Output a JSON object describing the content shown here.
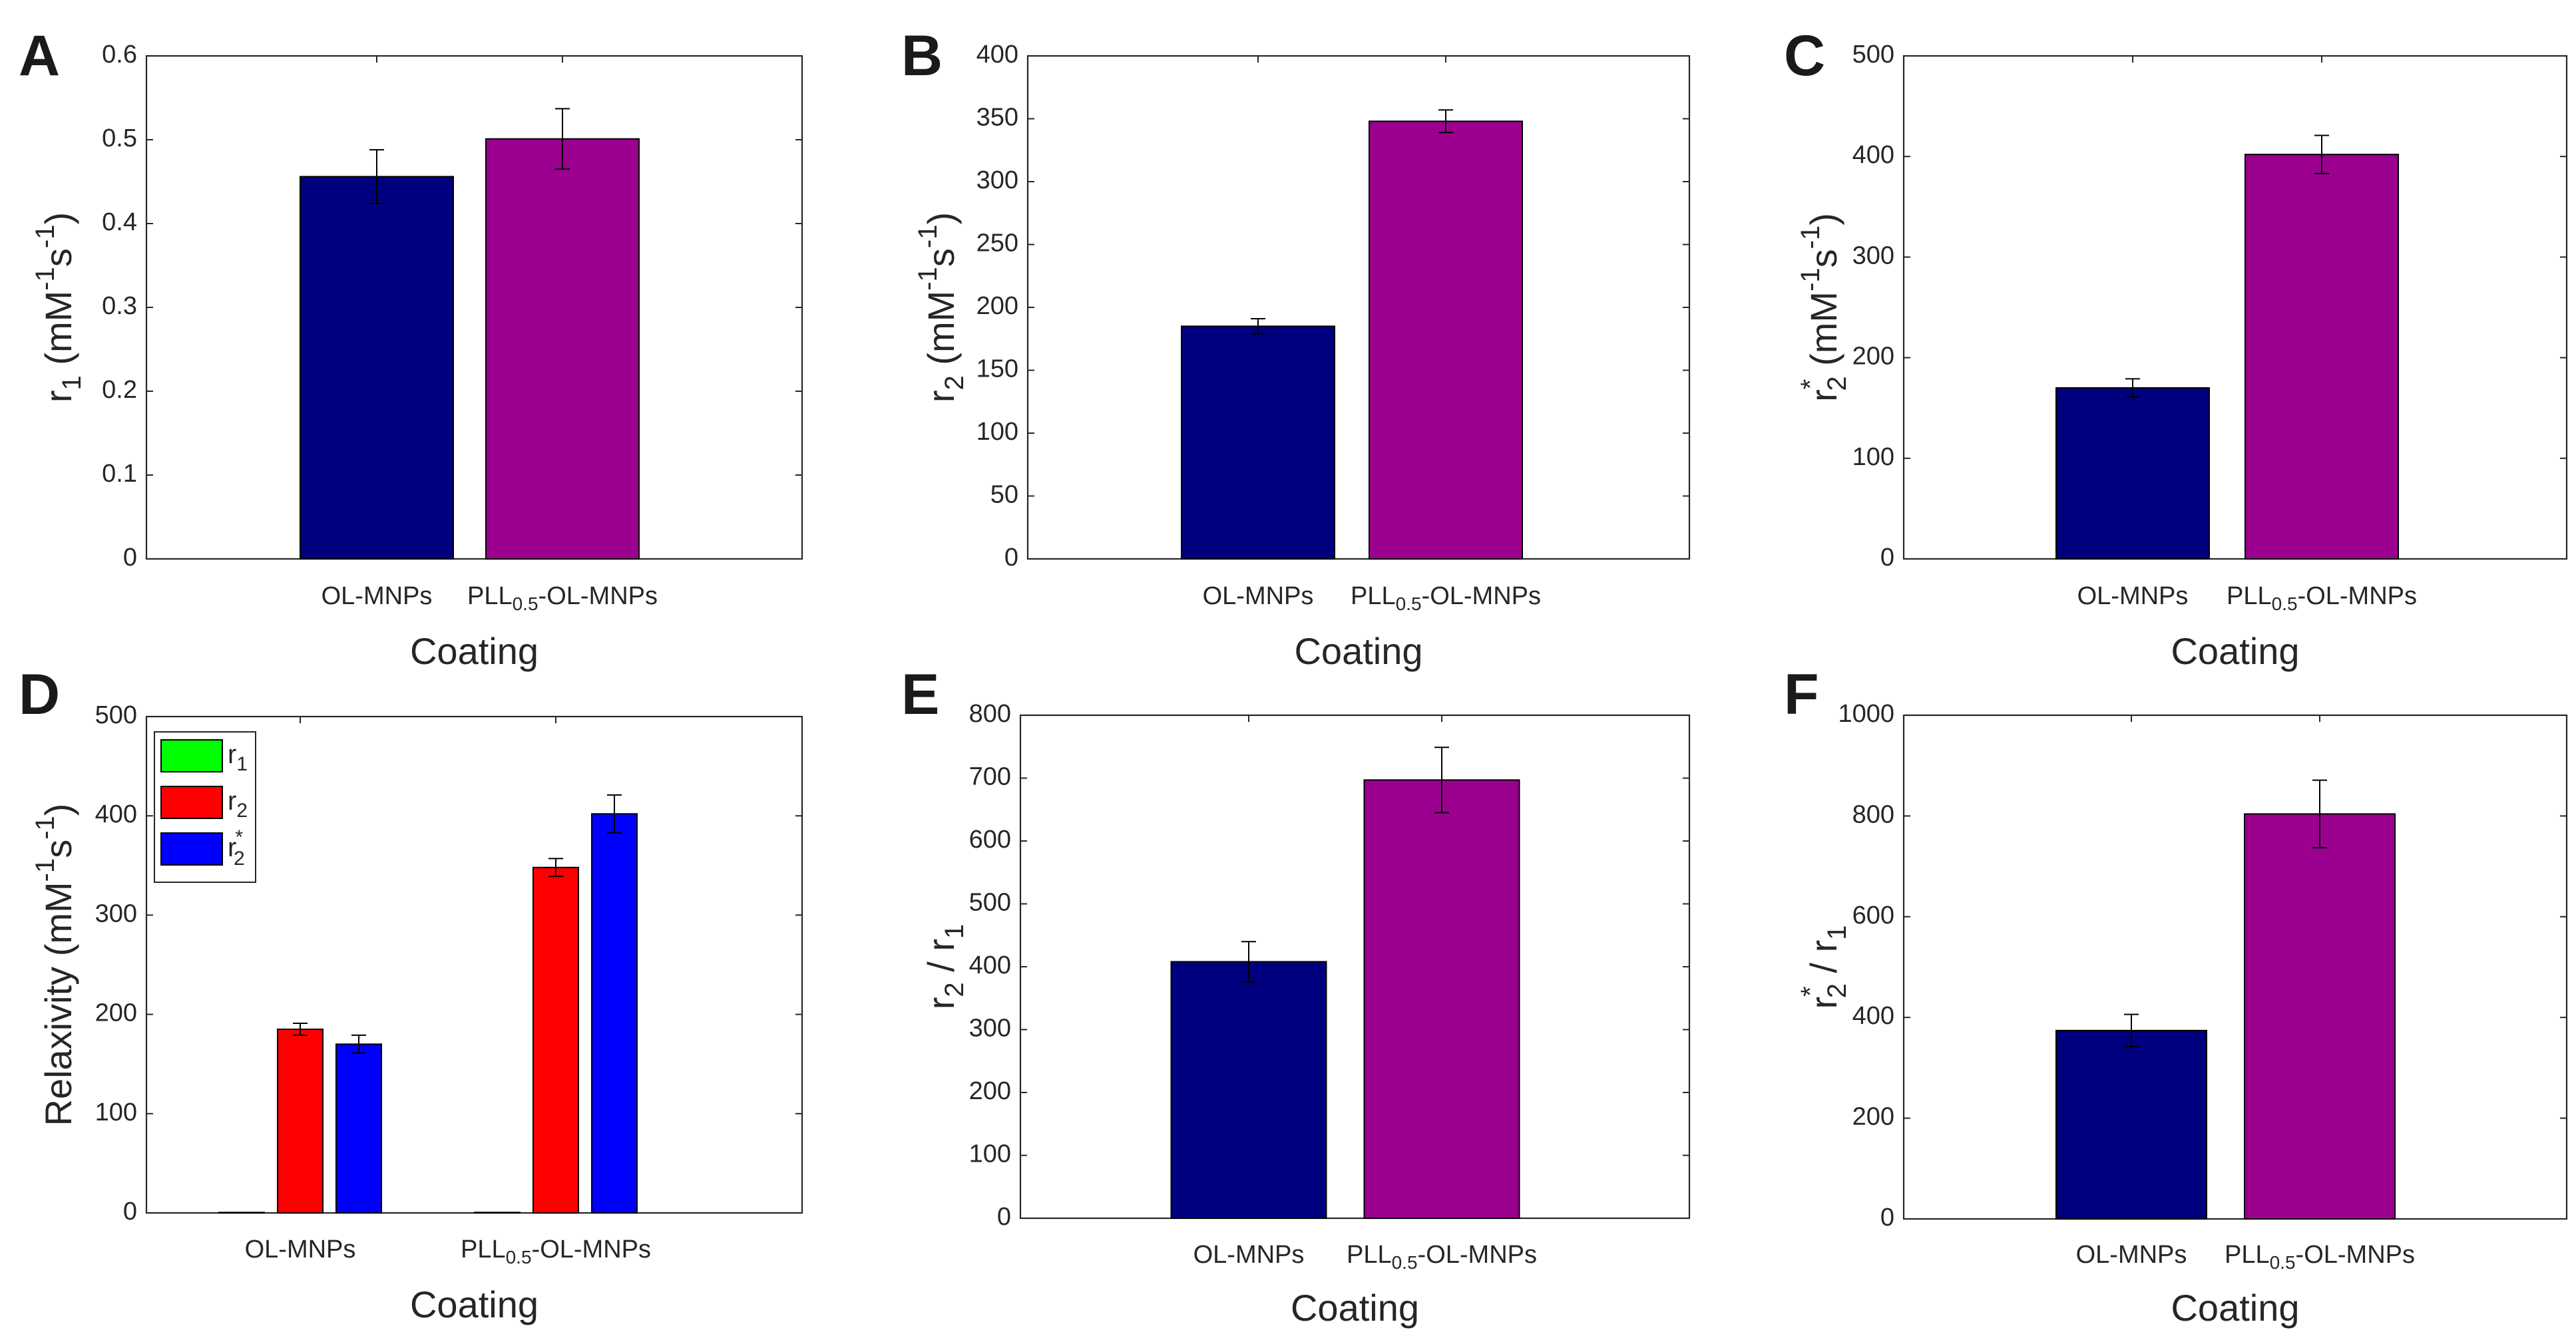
{
  "colors": {
    "ol": "#00007f",
    "pll": "#9b008f",
    "r1": "#00ff00",
    "r2": "#ff0000",
    "r2star": "#0000ff"
  },
  "chart_data": [
    {
      "panel": "A",
      "type": "bar",
      "categories": [
        {
          "main": "OL-MNPs",
          "sub": "",
          "tail": ""
        },
        {
          "main": "PLL",
          "sub": "0.5",
          "tail": "-OL-MNPs"
        }
      ],
      "values": [
        0.456,
        0.501
      ],
      "errors": [
        0.032,
        0.036
      ],
      "ylim": [
        0,
        0.6
      ],
      "yticks": [
        0,
        0.1,
        0.2,
        0.3,
        0.4,
        0.5,
        0.6
      ],
      "ytick_labels": [
        "0",
        "0.1",
        "0.2",
        "0.3",
        "0.4",
        "0.5",
        "0.6"
      ],
      "ylabel": {
        "base": "r",
        "sub": "1",
        "sup": "",
        "unit_a": " (mM",
        "unit_a_sup": "-1",
        "unit_b": "s",
        "unit_b_sup": "-1",
        "unit_end": ")"
      },
      "xlabel": "Coating"
    },
    {
      "panel": "B",
      "type": "bar",
      "categories": [
        {
          "main": "OL-MNPs",
          "sub": "",
          "tail": ""
        },
        {
          "main": "PLL",
          "sub": "0.5",
          "tail": "-OL-MNPs"
        }
      ],
      "values": [
        185,
        348
      ],
      "errors": [
        6,
        9
      ],
      "ylim": [
        0,
        400
      ],
      "yticks": [
        0,
        50,
        100,
        150,
        200,
        250,
        300,
        350,
        400
      ],
      "ytick_labels": [
        "0",
        "50",
        "100",
        "150",
        "200",
        "250",
        "300",
        "350",
        "400"
      ],
      "ylabel": {
        "base": "r",
        "sub": "2",
        "sup": "",
        "unit_a": " (mM",
        "unit_a_sup": "-1",
        "unit_b": "s",
        "unit_b_sup": "-1",
        "unit_end": ")"
      },
      "xlabel": "Coating"
    },
    {
      "panel": "C",
      "type": "bar",
      "categories": [
        {
          "main": "OL-MNPs",
          "sub": "",
          "tail": ""
        },
        {
          "main": "PLL",
          "sub": "0.5",
          "tail": "-OL-MNPs"
        }
      ],
      "values": [
        170,
        402
      ],
      "errors": [
        9,
        19
      ],
      "ylim": [
        0,
        500
      ],
      "yticks": [
        0,
        100,
        200,
        300,
        400,
        500
      ],
      "ytick_labels": [
        "0",
        "100",
        "200",
        "300",
        "400",
        "500"
      ],
      "ylabel": {
        "base": "r",
        "sub": "2",
        "sup": "*",
        "unit_a": " (mM",
        "unit_a_sup": "-1",
        "unit_b": "s",
        "unit_b_sup": "-1",
        "unit_end": ")"
      },
      "xlabel": "Coating"
    },
    {
      "panel": "D",
      "type": "grouped-bar",
      "categories": [
        {
          "main": "OL-MNPs",
          "sub": "",
          "tail": ""
        },
        {
          "main": "PLL",
          "sub": "0.5",
          "tail": "-OL-MNPs"
        }
      ],
      "series": [
        {
          "name": "r",
          "name_sub": "1",
          "name_sup": "",
          "color_key": "r1",
          "values": [
            0.456,
            0.501
          ],
          "errors": [
            0.032,
            0.036
          ]
        },
        {
          "name": "r",
          "name_sub": "2",
          "name_sup": "",
          "color_key": "r2",
          "values": [
            185,
            348
          ],
          "errors": [
            6,
            9
          ]
        },
        {
          "name": "r",
          "name_sub": "2",
          "name_sup": "*",
          "color_key": "r2star",
          "values": [
            170,
            402
          ],
          "errors": [
            9,
            19
          ]
        }
      ],
      "ylim": [
        0,
        500
      ],
      "yticks": [
        0,
        100,
        200,
        300,
        400,
        500
      ],
      "ytick_labels": [
        "0",
        "100",
        "200",
        "300",
        "400",
        "500"
      ],
      "ylabel": {
        "base": "Relaxivity",
        "sub": "",
        "sup": "",
        "unit_a": " (mM",
        "unit_a_sup": "-1",
        "unit_b": "s",
        "unit_b_sup": "-1",
        "unit_end": ")"
      },
      "xlabel": "Coating",
      "legend": "top-left"
    },
    {
      "panel": "E",
      "type": "bar",
      "categories": [
        {
          "main": "OL-MNPs",
          "sub": "",
          "tail": ""
        },
        {
          "main": "PLL",
          "sub": "0.5",
          "tail": "-OL-MNPs"
        }
      ],
      "values": [
        408,
        697
      ],
      "errors": [
        32,
        52
      ],
      "ylim": [
        0,
        800
      ],
      "yticks": [
        0,
        100,
        200,
        300,
        400,
        500,
        600,
        700,
        800
      ],
      "ytick_labels": [
        "0",
        "100",
        "200",
        "300",
        "400",
        "500",
        "600",
        "700",
        "800"
      ],
      "ylabel": {
        "ratio": true,
        "num": "r",
        "num_sub": "2",
        "num_sup": "",
        "den": "r",
        "den_sub": "1"
      },
      "xlabel": "Coating"
    },
    {
      "panel": "F",
      "type": "bar",
      "categories": [
        {
          "main": "OL-MNPs",
          "sub": "",
          "tail": ""
        },
        {
          "main": "PLL",
          "sub": "0.5",
          "tail": "-OL-MNPs"
        }
      ],
      "values": [
        374,
        804
      ],
      "errors": [
        32,
        67
      ],
      "ylim": [
        0,
        1000
      ],
      "yticks": [
        0,
        200,
        400,
        600,
        800,
        1000
      ],
      "ytick_labels": [
        "0",
        "200",
        "400",
        "600",
        "800",
        "1000"
      ],
      "ylabel": {
        "ratio": true,
        "num": "r",
        "num_sub": "2",
        "num_sup": "*",
        "den": "r",
        "den_sub": "1"
      },
      "xlabel": "Coating"
    }
  ]
}
